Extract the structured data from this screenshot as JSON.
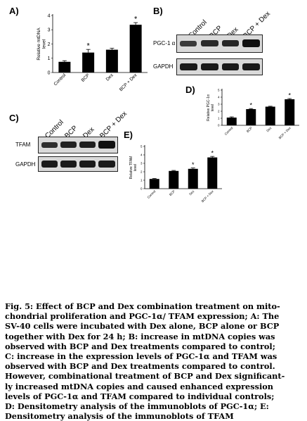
{
  "panels": {
    "A": "A)",
    "B": "B)",
    "C": "C)",
    "D": "D)",
    "E": "E)"
  },
  "blot_B": {
    "lanes": [
      "Control",
      "BCP",
      "Dex",
      "BCP + Dex"
    ],
    "rows": [
      "PGC-1 α",
      "GAPDH"
    ]
  },
  "blot_C": {
    "lanes": [
      "Control",
      "BCP",
      "Dex",
      "BCP + Dex"
    ],
    "rows": [
      "TFAM",
      "GAPDH"
    ]
  },
  "chart_data": [
    {
      "id": "A",
      "type": "bar",
      "ylabel": "Relative mtDNA\nlevel",
      "categories": [
        "Control",
        "BCP",
        "Dex",
        "BCP + Dex"
      ],
      "values": [
        0.75,
        1.4,
        1.6,
        3.35
      ],
      "errors": [
        0.08,
        0.22,
        0.1,
        0.15
      ],
      "significance": [
        "",
        "*",
        "",
        "*"
      ],
      "ylim": [
        0,
        4
      ],
      "yticks": [
        0,
        1,
        2,
        3,
        4
      ]
    },
    {
      "id": "D",
      "type": "bar",
      "ylabel": "Relative PGC-1α\nlevel",
      "categories": [
        "Control",
        "BCP",
        "Dex",
        "BCP + Dex"
      ],
      "values": [
        1.1,
        2.3,
        2.65,
        3.7
      ],
      "errors": [
        0.1,
        0.08,
        0.06,
        0.1
      ],
      "significance": [
        "",
        "*",
        "",
        "*"
      ],
      "ylim": [
        0,
        5
      ],
      "yticks": [
        0,
        1,
        2,
        3,
        4,
        5
      ]
    },
    {
      "id": "E",
      "type": "bar",
      "ylabel": "Relative TFAM\nlevel",
      "categories": [
        "Control",
        "BCP",
        "Dex",
        "BCP + Dex"
      ],
      "values": [
        1.15,
        2.1,
        2.35,
        3.7
      ],
      "errors": [
        0.06,
        0.06,
        0.1,
        0.12
      ],
      "significance": [
        "",
        "",
        "*",
        "*"
      ],
      "ylim": [
        0,
        5
      ],
      "yticks": [
        0,
        1,
        2,
        3,
        4,
        5
      ]
    }
  ],
  "caption": {
    "lines": [
      "Fig. 5: Effect of BCP and Dex combination treatment on mito-",
      "chondrial proliferation and PGC-1α/ TFAM expression; A: The",
      "SV-40 cells were incubated with Dex alone, BCP alone or BCP",
      "together with Dex for 24 h; B: increase in mtDNA copies was",
      "observed with BCP and Dex treatments compared to control;",
      "C: increase in the expression levels of PGC-1α and TFAM was",
      "observed with BCP and Dex treatments compared to control.",
      "However, combinational treatment of BCP and Dex significant-",
      "ly increased mtDNA copies and caused enhanced expression",
      "levels of PGC-1α and TFAM compared to individual controls;",
      "D: Densitometry analysis of the immunoblots of PGC-1α; E:",
      "Densitometry analysis of the immunoblots of TFAM"
    ]
  }
}
